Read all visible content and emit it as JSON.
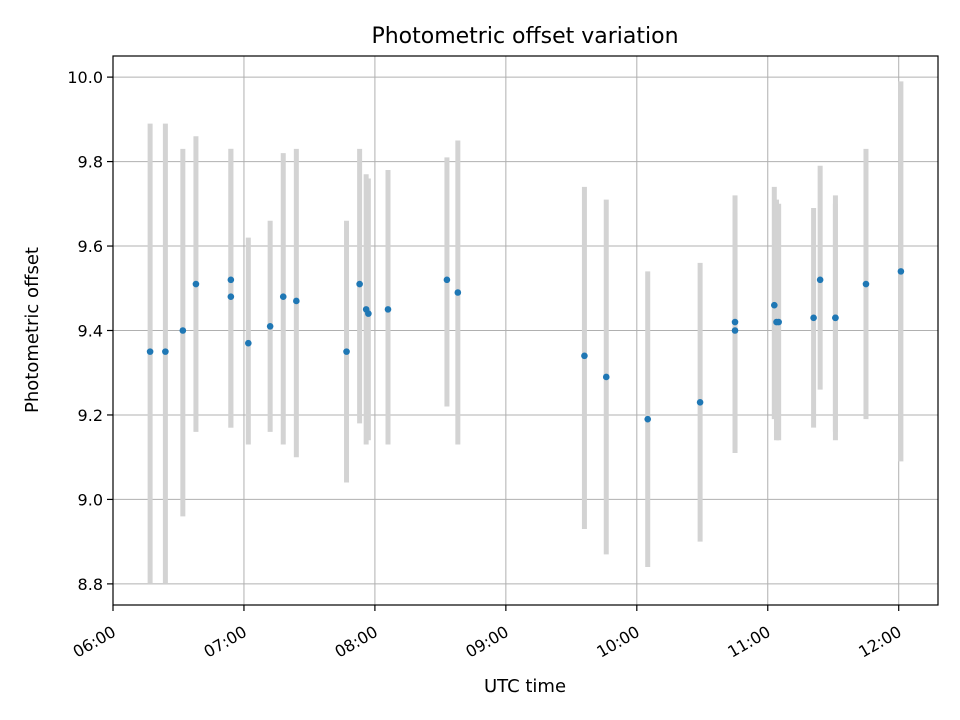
{
  "chart_data": {
    "type": "scatter",
    "title": "Photometric offset variation",
    "xlabel": "UTC time",
    "ylabel": "Photometric offset",
    "x_ticks": [
      "06:00",
      "07:00",
      "08:00",
      "09:00",
      "10:00",
      "11:00",
      "12:00"
    ],
    "y_ticks": [
      "8.8",
      "9.0",
      "9.2",
      "9.4",
      "9.6",
      "9.8",
      "10.0"
    ],
    "xlim": [
      "06:00",
      "12:18"
    ],
    "ylim": [
      8.75,
      10.05
    ],
    "grid": true,
    "colors": {
      "points": "#1f77b4",
      "error_bars": "#d3d3d3",
      "grid": "#b0b0b0"
    },
    "series": [
      {
        "points": [
          {
            "time": "06:17",
            "y": 9.35,
            "err_low": 8.8,
            "err_high": 9.89
          },
          {
            "time": "06:24",
            "y": 9.35,
            "err_low": 8.8,
            "err_high": 9.89
          },
          {
            "time": "06:32",
            "y": 9.4,
            "err_low": 8.96,
            "err_high": 9.83
          },
          {
            "time": "06:38",
            "y": 9.51,
            "err_low": 9.16,
            "err_high": 9.86
          },
          {
            "time": "06:54",
            "y": 9.52,
            "err_low": 9.17,
            "err_high": 9.83
          },
          {
            "time": "06:54",
            "y": 9.48,
            "err_low": 9.17,
            "err_high": 9.83
          },
          {
            "time": "07:02",
            "y": 9.37,
            "err_low": 9.13,
            "err_high": 9.62
          },
          {
            "time": "07:12",
            "y": 9.41,
            "err_low": 9.16,
            "err_high": 9.66
          },
          {
            "time": "07:18",
            "y": 9.48,
            "err_low": 9.13,
            "err_high": 9.82
          },
          {
            "time": "07:24",
            "y": 9.47,
            "err_low": 9.1,
            "err_high": 9.83
          },
          {
            "time": "07:47",
            "y": 9.35,
            "err_low": 9.04,
            "err_high": 9.66
          },
          {
            "time": "07:53",
            "y": 9.51,
            "err_low": 9.18,
            "err_high": 9.83
          },
          {
            "time": "07:56",
            "y": 9.45,
            "err_low": 9.13,
            "err_high": 9.77
          },
          {
            "time": "07:57",
            "y": 9.44,
            "err_low": 9.14,
            "err_high": 9.76
          },
          {
            "time": "08:06",
            "y": 9.45,
            "err_low": 9.13,
            "err_high": 9.78
          },
          {
            "time": "08:33",
            "y": 9.52,
            "err_low": 9.22,
            "err_high": 9.81
          },
          {
            "time": "08:38",
            "y": 9.49,
            "err_low": 9.13,
            "err_high": 9.85
          },
          {
            "time": "09:36",
            "y": 9.34,
            "err_low": 8.93,
            "err_high": 9.74
          },
          {
            "time": "09:46",
            "y": 9.29,
            "err_low": 8.87,
            "err_high": 9.71
          },
          {
            "time": "10:05",
            "y": 9.19,
            "err_low": 8.84,
            "err_high": 9.54
          },
          {
            "time": "10:29",
            "y": 9.23,
            "err_low": 8.9,
            "err_high": 9.56
          },
          {
            "time": "10:45",
            "y": 9.4,
            "err_low": 9.12,
            "err_high": 9.68
          },
          {
            "time": "10:45",
            "y": 9.42,
            "err_low": 9.11,
            "err_high": 9.72
          },
          {
            "time": "11:03",
            "y": 9.46,
            "err_low": 9.19,
            "err_high": 9.74
          },
          {
            "time": "11:04",
            "y": 9.42,
            "err_low": 9.14,
            "err_high": 9.71
          },
          {
            "time": "11:05",
            "y": 9.42,
            "err_low": 9.14,
            "err_high": 9.7
          },
          {
            "time": "11:21",
            "y": 9.43,
            "err_low": 9.17,
            "err_high": 9.69
          },
          {
            "time": "11:24",
            "y": 9.52,
            "err_low": 9.26,
            "err_high": 9.79
          },
          {
            "time": "11:31",
            "y": 9.43,
            "err_low": 9.14,
            "err_high": 9.72
          },
          {
            "time": "11:31",
            "y": 9.43,
            "err_low": 9.16,
            "err_high": 9.7
          },
          {
            "time": "11:45",
            "y": 9.51,
            "err_low": 9.19,
            "err_high": 9.83
          },
          {
            "time": "12:01",
            "y": 9.54,
            "err_low": 9.09,
            "err_high": 9.99
          }
        ]
      }
    ]
  }
}
